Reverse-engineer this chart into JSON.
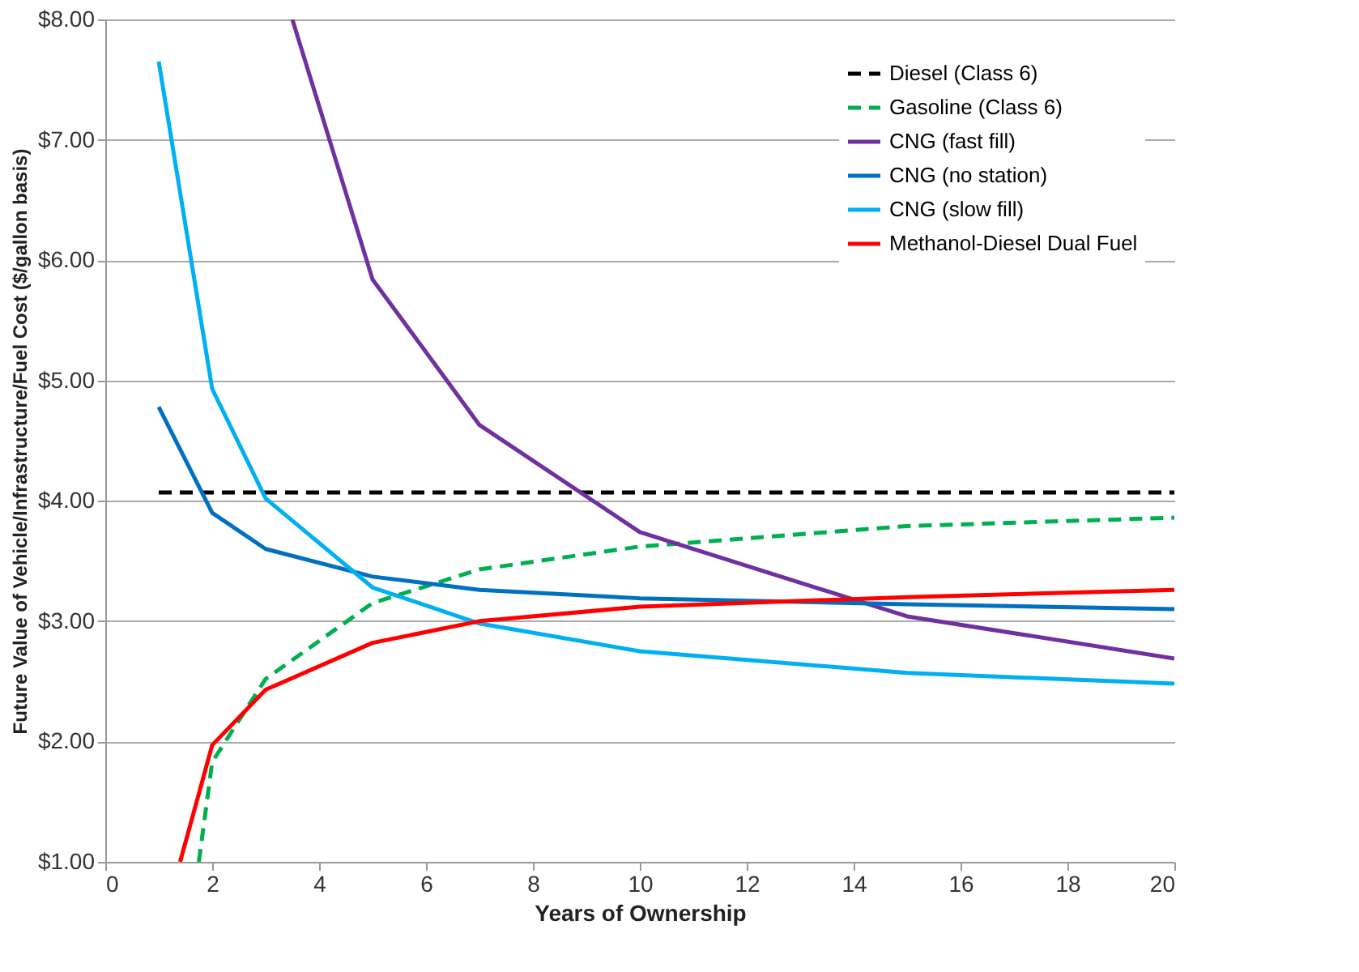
{
  "chart_data": {
    "type": "line",
    "xlabel": "Years of Ownership",
    "ylabel": "Future Value of Vehicle/Infrastructure/Fuel Cost  ($/gallon basis)",
    "xlim": [
      0,
      20
    ],
    "xticks": [
      0,
      2,
      4,
      6,
      8,
      10,
      12,
      14,
      16,
      18,
      20
    ],
    "ylim": [
      1,
      8
    ],
    "yticks": [
      {
        "value": 1,
        "label": "$1.00"
      },
      {
        "value": 2,
        "label": "$2.00"
      },
      {
        "value": 3,
        "label": "$3.00"
      },
      {
        "value": 4,
        "label": "$4.00"
      },
      {
        "value": 5,
        "label": "$5.00"
      },
      {
        "value": 6,
        "label": "$6.00"
      },
      {
        "value": 7,
        "label": "$7.00"
      },
      {
        "value": 8,
        "label": "$8.00"
      }
    ],
    "grid": "y",
    "legend": "top right",
    "marker": "none",
    "series": [
      {
        "name": "Diesel (Class 6)",
        "color": "#000000",
        "line_style": "dashed",
        "x": [
          1,
          20
        ],
        "values": [
          4.07,
          4.07
        ]
      },
      {
        "name": "Gasoline (Class 6)",
        "color": "#00b050",
        "line_style": "dashed",
        "x": [
          1.75,
          2,
          3,
          5,
          7,
          10,
          15,
          20
        ],
        "values": [
          1.0,
          1.83,
          2.52,
          3.15,
          3.43,
          3.62,
          3.79,
          3.86
        ]
      },
      {
        "name": "CNG (fast fill)",
        "color": "#7030a0",
        "line_style": "solid",
        "x": [
          3.5,
          5,
          7,
          10,
          15,
          20
        ],
        "values": [
          8.0,
          5.84,
          4.63,
          3.74,
          3.04,
          2.69
        ]
      },
      {
        "name": "CNG (no station)",
        "color": "#0070c0",
        "line_style": "solid",
        "x": [
          1,
          2,
          3,
          5,
          7,
          10,
          15,
          20
        ],
        "values": [
          4.78,
          3.9,
          3.6,
          3.37,
          3.26,
          3.19,
          3.14,
          3.1
        ]
      },
      {
        "name": "CNG (slow fill)",
        "color": "#00b0f0",
        "line_style": "solid",
        "x": [
          1,
          2,
          3,
          5,
          7,
          10,
          15,
          20
        ],
        "values": [
          7.65,
          4.93,
          4.02,
          3.28,
          2.98,
          2.75,
          2.57,
          2.48
        ]
      },
      {
        "name": "Methanol-Diesel Dual Fuel",
        "color": "#ff0000",
        "line_style": "solid",
        "x": [
          1.4,
          2,
          3,
          5,
          7,
          10,
          15,
          20
        ],
        "values": [
          1.0,
          1.97,
          2.43,
          2.82,
          3.0,
          3.12,
          3.2,
          3.26
        ]
      }
    ]
  }
}
